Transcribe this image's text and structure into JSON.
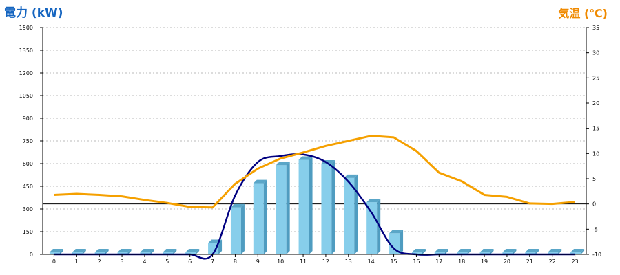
{
  "chart_data": {
    "type": "bar",
    "x": [
      "0",
      "1",
      "2",
      "3",
      "4",
      "5",
      "6",
      "7",
      "8",
      "9",
      "10",
      "11",
      "12",
      "13",
      "14",
      "15",
      "16",
      "17",
      "18",
      "19",
      "20",
      "21",
      "22",
      "23"
    ],
    "series": [
      {
        "name": "電力 (kW)",
        "type": "bar",
        "axis": "left",
        "color": "#87ceeb",
        "values": [
          0,
          0,
          0,
          0,
          0,
          0,
          0,
          75,
          310,
          470,
          590,
          625,
          600,
          505,
          345,
          140,
          0,
          0,
          0,
          0,
          0,
          0,
          0,
          0
        ]
      },
      {
        "type": "line",
        "axis": "left",
        "color": "#000080",
        "values": [
          0,
          0,
          0,
          0,
          0,
          0,
          0,
          0,
          390,
          610,
          650,
          660,
          610,
          480,
          280,
          40,
          0,
          0,
          0,
          0,
          0,
          0,
          0,
          0
        ]
      },
      {
        "name": "気温 (℃)",
        "type": "line",
        "axis": "right",
        "color": "#f5a000",
        "values": [
          1.8,
          2.0,
          1.8,
          1.5,
          0.8,
          0.2,
          -0.6,
          -0.7,
          4.0,
          7.0,
          9.0,
          10.2,
          11.5,
          12.5,
          13.5,
          13.2,
          10.5,
          6.2,
          4.5,
          1.8,
          1.4,
          0.1,
          0.0,
          0.4
        ]
      }
    ],
    "y_left": {
      "label": "電力 (kW)",
      "ticks": [
        0,
        150,
        300,
        450,
        600,
        750,
        900,
        1050,
        1200,
        1350,
        1500
      ],
      "range": [
        0,
        1500
      ]
    },
    "y_right": {
      "label": "気温 (℃)",
      "ticks": [
        -10,
        -5,
        0,
        5,
        10,
        15,
        20,
        25,
        30,
        35
      ],
      "range": [
        -10,
        35
      ]
    },
    "grid": "horizontal-dashed",
    "zero_line_right_axis": 0
  }
}
